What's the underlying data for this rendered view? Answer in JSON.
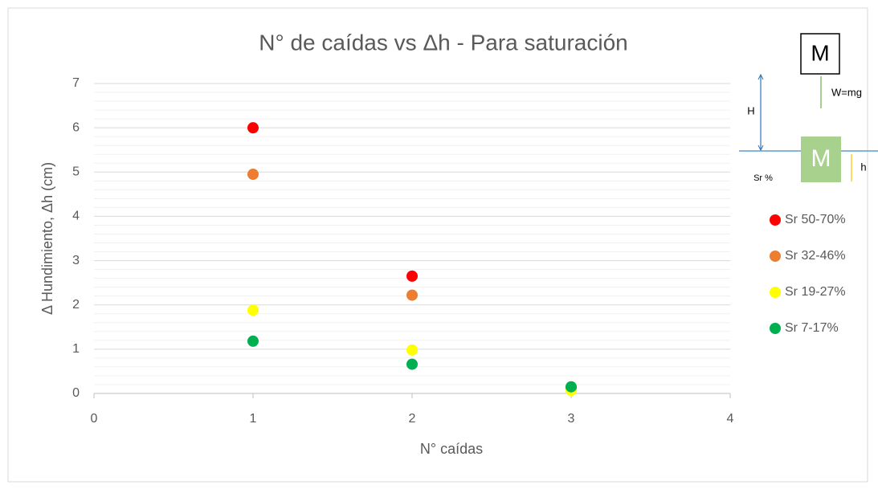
{
  "chart_data": {
    "type": "scatter",
    "title": "N° de caídas vs Δh - Para saturación",
    "x_label": "N° caídas",
    "y_label": "Δ Hundimiento, Δh (cm)",
    "x": [
      1,
      2,
      3
    ],
    "series": [
      {
        "name": "Sr 50-70%",
        "color": "#ff0000",
        "values": [
          6,
          2.65,
          0.12
        ]
      },
      {
        "name": "Sr 32-46%",
        "color": "#ed7d31",
        "values": [
          4.95,
          2.22,
          0.1
        ]
      },
      {
        "name": "Sr 19-27%",
        "color": "#ffff00",
        "values": [
          1.88,
          0.98,
          0.07
        ]
      },
      {
        "name": "Sr 7-17%",
        "color": "#00b050",
        "values": [
          1.18,
          0.66,
          0.15
        ]
      }
    ],
    "xlim": [
      0,
      4
    ],
    "xticks": [
      0,
      1,
      2,
      3,
      4
    ],
    "ylim": [
      0,
      7
    ],
    "yticks": [
      0,
      1,
      2,
      3,
      4,
      5,
      6,
      7
    ],
    "grid": true,
    "legend": "right",
    "diagram": {
      "top_block": "M",
      "weight": "W=mg",
      "height_label": "H",
      "bottom_block": "M",
      "sink_label": "h",
      "ground_label": "Sr %"
    }
  }
}
